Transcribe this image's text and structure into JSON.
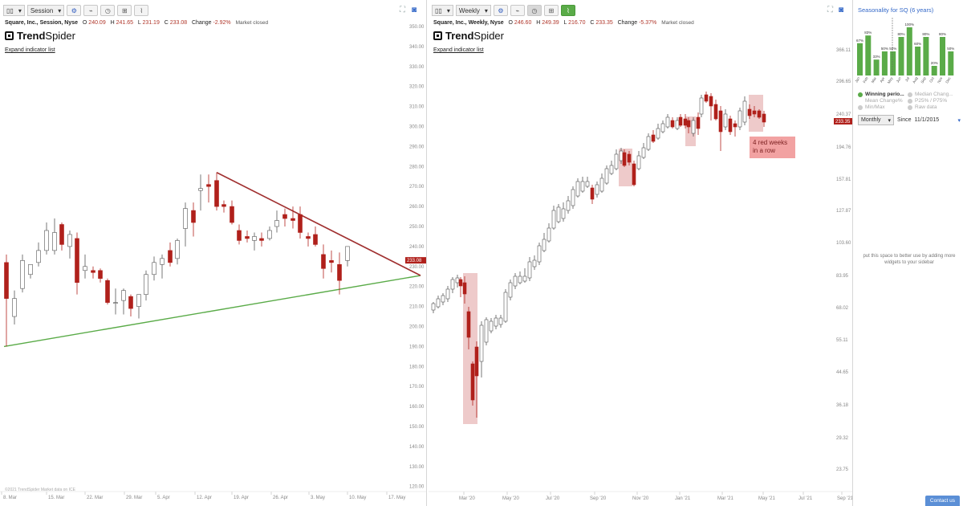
{
  "left": {
    "toolbar": {
      "chart_icon": "candles-icon",
      "timeframe": "Session"
    },
    "ohlc": {
      "name": "Square, Inc., Session, Nyse",
      "o_label": "O",
      "o": "240.09",
      "h_label": "H",
      "h": "241.65",
      "l_label": "L",
      "l": "231.19",
      "c_label": "C",
      "c": "233.08",
      "change_label": "Change",
      "change": "-2.92%",
      "status": "Market closed"
    },
    "logo": {
      "bold": "Trend",
      "rest": "Spider"
    },
    "expand_label": "Expand indicator list",
    "copyright": "©2021 TrendSpider Market data on ICE",
    "price_tag": "233.08",
    "y_ticks": [
      "350.00",
      "340.00",
      "330.00",
      "320.00",
      "310.00",
      "300.00",
      "290.00",
      "280.00",
      "270.00",
      "260.00",
      "250.00",
      "240.00",
      "230.00",
      "220.00",
      "210.00",
      "200.00",
      "190.00",
      "180.00",
      "170.00",
      "160.00",
      "150.00",
      "140.00",
      "130.00",
      "120.00"
    ],
    "x_ticks": [
      "8. Mar",
      "15. Mar",
      "22. Mar",
      "29. Mar",
      "5. Apr",
      "12. Apr",
      "19. Apr",
      "26. Apr",
      "3. May",
      "10. May",
      "17. May"
    ]
  },
  "mid": {
    "toolbar": {
      "chart_icon": "candles-icon",
      "timeframe": "Weekly"
    },
    "ohlc": {
      "name": "Square, Inc., Weekly, Nyse",
      "o_label": "O",
      "o": "246.60",
      "h_label": "H",
      "h": "249.39",
      "l_label": "L",
      "l": "216.70",
      "c_label": "C",
      "c": "233.35",
      "change_label": "Change",
      "change": "-5.37%",
      "status": "Market closed"
    },
    "logo": {
      "bold": "Trend",
      "rest": "Spider"
    },
    "expand_label": "Expand indicator list",
    "annotation": "4 red weeks in a row",
    "price_tag": "233.35",
    "y_ticks": [
      "366.11",
      "296.65",
      "240.37",
      "194.76",
      "157.81",
      "127.87",
      "103.60",
      "83.95",
      "68.02",
      "55.11",
      "44.65",
      "36.18",
      "29.32",
      "23.75"
    ],
    "x_ticks": [
      "Mar '20",
      "May '20",
      "Jul '20",
      "Sep '20",
      "Nov '20",
      "Jan '21",
      "Mar '21",
      "May '21",
      "Jul '21",
      "Sep '21"
    ]
  },
  "seasonality": {
    "title": "Seasonality for SQ (6 years)",
    "months": [
      "Jan",
      "Feb",
      "Mar",
      "Apr",
      "May",
      "Jun",
      "Jul",
      "Aug",
      "Sep",
      "Oct",
      "Nov",
      "Dec"
    ],
    "percents": [
      "67%",
      "83%",
      "33%",
      "50%",
      "50%",
      "80%",
      "100%",
      "60%",
      "80%",
      "20%",
      "80%",
      "50%"
    ],
    "values": [
      67,
      83,
      33,
      50,
      50,
      80,
      100,
      60,
      80,
      20,
      80,
      50
    ],
    "legend": {
      "winning": "Winning perio...",
      "median": "Median Chang...",
      "mean": "Mean Change%",
      "p25": "P25% / P75%",
      "minmax": "Min/Max",
      "raw": "Raw data"
    },
    "period": "Monthly",
    "since_label": "Since",
    "since_value": "11/1/2015",
    "sidebar_message": "put this space to better use by adding more widgets to your sidebar",
    "contact": "Contact us"
  },
  "colors": {
    "up": "#ffffff",
    "down": "#b0201b",
    "trend_down": "#a03030",
    "trend_up": "#5aab48",
    "highlight": "#e8b8b8"
  }
}
